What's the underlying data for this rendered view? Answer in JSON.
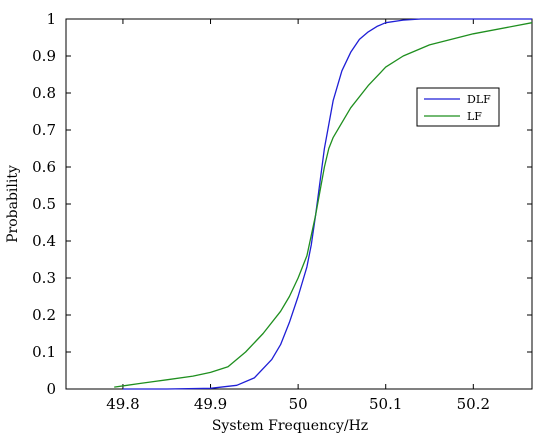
{
  "chart_data": {
    "type": "line",
    "title": "",
    "xlabel": "System Frequency/Hz",
    "ylabel": "Probability",
    "xlim": [
      49.735,
      50.267
    ],
    "ylim": [
      0,
      1
    ],
    "xticks": [
      49.8,
      49.9,
      50,
      50.1,
      50.2
    ],
    "xtick_labels": [
      "49.8",
      "49.9",
      "50",
      "50.1",
      "50.2"
    ],
    "yticks": [
      0,
      0.1,
      0.2,
      0.3,
      0.4,
      0.5,
      0.6,
      0.7,
      0.8,
      0.9,
      1
    ],
    "ytick_labels": [
      "0",
      "0.1",
      "0.2",
      "0.3",
      "0.4",
      "0.5",
      "0.6",
      "0.7",
      "0.8",
      "0.9",
      "1"
    ],
    "grid": false,
    "legend_position": "right",
    "series": [
      {
        "name": "DLF",
        "color": "#1f1fd6",
        "x": [
          49.8,
          49.85,
          49.9,
          49.93,
          49.95,
          49.97,
          49.98,
          49.99,
          50.0,
          50.01,
          50.015,
          50.02,
          50.025,
          50.03,
          50.04,
          50.05,
          50.06,
          50.07,
          50.08,
          50.09,
          50.1,
          50.12,
          50.14,
          50.2,
          50.267
        ],
        "y": [
          0.0,
          0.0,
          0.002,
          0.01,
          0.03,
          0.08,
          0.12,
          0.18,
          0.25,
          0.33,
          0.39,
          0.47,
          0.56,
          0.65,
          0.78,
          0.86,
          0.91,
          0.945,
          0.965,
          0.98,
          0.99,
          0.997,
          1.0,
          1.0,
          1.0
        ]
      },
      {
        "name": "LF",
        "color": "#1f8f1f",
        "x": [
          49.79,
          49.82,
          49.85,
          49.88,
          49.9,
          49.92,
          49.94,
          49.96,
          49.98,
          49.99,
          50.0,
          50.01,
          50.02,
          50.03,
          50.035,
          50.04,
          50.06,
          50.08,
          50.1,
          50.12,
          50.15,
          50.2,
          50.267
        ],
        "y": [
          0.005,
          0.015,
          0.025,
          0.035,
          0.045,
          0.06,
          0.1,
          0.15,
          0.21,
          0.25,
          0.3,
          0.36,
          0.47,
          0.6,
          0.65,
          0.68,
          0.76,
          0.82,
          0.87,
          0.9,
          0.93,
          0.96,
          0.99
        ]
      }
    ]
  }
}
